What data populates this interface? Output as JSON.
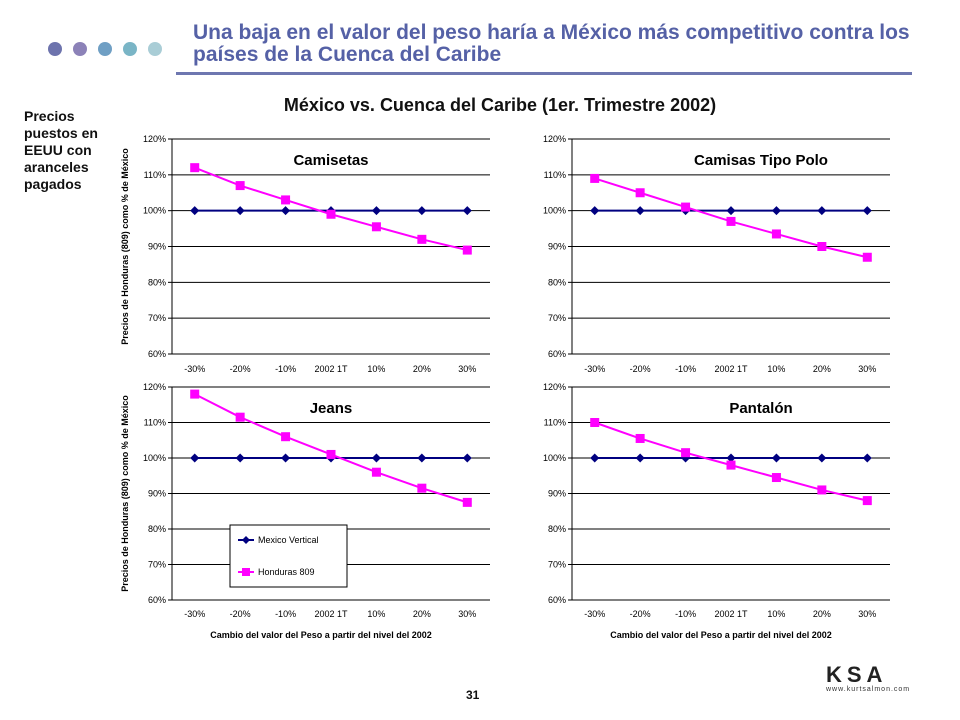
{
  "slide": {
    "title": "Una baja en el valor del peso haría a México más competitivo contra los países de la Cuenca del Caribe",
    "subtitle": "México vs. Cuenca del Caribe (1er. Trimestre 2002)",
    "sidenote": "Precios puestos en EEUU con aranceles pagados",
    "page_number": "31",
    "logo_text": "KSA",
    "logo_url": "www.kurtsalmon.com",
    "dot_colors": [
      "#6d73ad",
      "#8c82b8",
      "#6f9fc4",
      "#7ab5c6",
      "#a9cdd6"
    ],
    "title_color": "#5561a6"
  },
  "chart_data": [
    {
      "type": "line",
      "title": "Camisetas",
      "categories": [
        "-30%",
        "-20%",
        "-10%",
        "2002 1T",
        "10%",
        "20%",
        "30%"
      ],
      "ylabel": "Precios de Honduras (809) como % de México",
      "xlabel": "",
      "yticks": [
        "60%",
        "70%",
        "80%",
        "90%",
        "100%",
        "110%",
        "120%"
      ],
      "ylim": [
        60,
        120
      ],
      "grid": true,
      "series": [
        {
          "name": "Mexico Vertical",
          "color": "#000080",
          "marker": "diamond",
          "values": [
            100,
            100,
            100,
            100,
            100,
            100,
            100
          ]
        },
        {
          "name": "Honduras 809",
          "color": "#ff00ff",
          "marker": "square",
          "values": [
            112,
            107,
            103,
            99,
            95.5,
            92,
            89
          ]
        }
      ]
    },
    {
      "type": "line",
      "title": "Camisas Tipo Polo",
      "categories": [
        "-30%",
        "-20%",
        "-10%",
        "2002 1T",
        "10%",
        "20%",
        "30%"
      ],
      "ylabel": "",
      "xlabel": "",
      "yticks": [
        "60%",
        "70%",
        "80%",
        "90%",
        "100%",
        "110%",
        "120%"
      ],
      "ylim": [
        60,
        120
      ],
      "grid": true,
      "series": [
        {
          "name": "Mexico Vertical",
          "color": "#000080",
          "marker": "diamond",
          "values": [
            100,
            100,
            100,
            100,
            100,
            100,
            100
          ]
        },
        {
          "name": "Honduras 809",
          "color": "#ff00ff",
          "marker": "square",
          "values": [
            109,
            105,
            101,
            97,
            93.5,
            90,
            87
          ]
        }
      ]
    },
    {
      "type": "line",
      "title": "Jeans",
      "categories": [
        "-30%",
        "-20%",
        "-10%",
        "2002 1T",
        "10%",
        "20%",
        "30%"
      ],
      "ylabel": "Precios de Honduras (809) como % de México",
      "xlabel": "Cambio del valor del Peso a partir del nivel del 2002",
      "yticks": [
        "60%",
        "70%",
        "80%",
        "90%",
        "100%",
        "110%",
        "120%"
      ],
      "ylim": [
        60,
        120
      ],
      "grid": true,
      "legend": "inside-bottom-left",
      "series": [
        {
          "name": "Mexico Vertical",
          "color": "#000080",
          "marker": "diamond",
          "values": [
            100,
            100,
            100,
            100,
            100,
            100,
            100
          ]
        },
        {
          "name": "Honduras 809",
          "color": "#ff00ff",
          "marker": "square",
          "values": [
            118,
            111.5,
            106,
            101,
            96,
            91.5,
            87.5
          ]
        }
      ]
    },
    {
      "type": "line",
      "title": "Pantalón",
      "categories": [
        "-30%",
        "-20%",
        "-10%",
        "2002 1T",
        "10%",
        "20%",
        "30%"
      ],
      "ylabel": "",
      "xlabel": "Cambio del valor del Peso a partir del nivel del 2002",
      "yticks": [
        "60%",
        "70%",
        "80%",
        "90%",
        "100%",
        "110%",
        "120%"
      ],
      "ylim": [
        60,
        120
      ],
      "grid": true,
      "series": [
        {
          "name": "Mexico Vertical",
          "color": "#000080",
          "marker": "diamond",
          "values": [
            100,
            100,
            100,
            100,
            100,
            100,
            100
          ]
        },
        {
          "name": "Honduras 809",
          "color": "#ff00ff",
          "marker": "square",
          "values": [
            110,
            105.5,
            101.5,
            98,
            94.5,
            91,
            88
          ]
        }
      ]
    }
  ]
}
